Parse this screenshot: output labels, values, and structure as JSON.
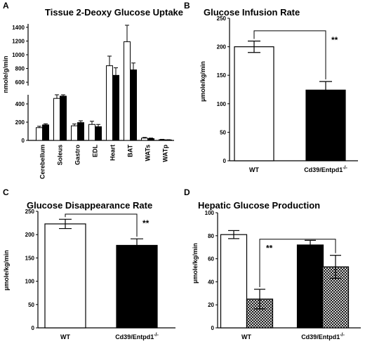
{
  "chart_data": [
    {
      "panel": "A",
      "type": "bar",
      "title": "Tissue 2-Deoxy Glucose Uptake",
      "ylabel": "nmole/g/min",
      "xlabel": "",
      "y_axis_break": true,
      "y_ticks_lower": [
        0,
        200,
        400
      ],
      "y_ticks_upper": [
        600,
        800,
        1000,
        1200,
        1400
      ],
      "ylim": [
        0,
        1400
      ],
      "categories": [
        "Cerebellum",
        "Soleus",
        "Gastro",
        "EDL",
        "Heart",
        "BAT",
        "WATs",
        "WATp"
      ],
      "series": [
        {
          "fill": "#ffffff",
          "values": [
            140,
            460,
            160,
            175,
            840,
            1190,
            25,
            8
          ],
          "errors": [
            15,
            45,
            20,
            35,
            140,
            240,
            8,
            4
          ]
        },
        {
          "fill": "#000000",
          "values": [
            170,
            485,
            195,
            150,
            700,
            780,
            20,
            5
          ],
          "errors": [
            12,
            30,
            20,
            25,
            110,
            100,
            6,
            3
          ]
        }
      ],
      "grid": false,
      "legend": "none"
    },
    {
      "panel": "B",
      "type": "bar",
      "title": "Glucose Infusion Rate",
      "ylabel": "µmole/kg/min",
      "xlabel": "",
      "ylim": [
        0,
        250
      ],
      "y_ticks": [
        0,
        50,
        100,
        150,
        200,
        250
      ],
      "categories": [
        "WT",
        "Cd39/Entpd1"
      ],
      "category_superscript": [
        "",
        "-/-"
      ],
      "values": [
        200,
        124
      ],
      "errors": [
        10,
        15
      ],
      "fills": [
        "#ffffff",
        "#000000"
      ],
      "significance": {
        "from": 0,
        "to": 1,
        "label": "**",
        "bracket_y": 228
      },
      "grid": false,
      "legend": "none"
    },
    {
      "panel": "C",
      "type": "bar",
      "title": "Glucose Disappearance Rate",
      "ylabel": "µmole/kg/min",
      "xlabel": "",
      "ylim": [
        0,
        250
      ],
      "y_ticks": [
        0,
        50,
        100,
        150,
        200,
        250
      ],
      "categories": [
        "WT",
        "Cd39/Entpd1"
      ],
      "category_superscript": [
        "",
        "-/-"
      ],
      "values": [
        223,
        177
      ],
      "errors": [
        10,
        14
      ],
      "fills": [
        "#ffffff",
        "#000000"
      ],
      "significance": {
        "from": 0,
        "to": 1,
        "label": "**",
        "bracket_y": 244
      },
      "grid": false,
      "legend": "none"
    },
    {
      "panel": "D",
      "type": "bar",
      "title": "Hepatic Glucose Production",
      "ylabel": "µmole/kg/min",
      "xlabel": "",
      "ylim": [
        0,
        100
      ],
      "y_ticks": [
        0,
        20,
        40,
        60,
        80,
        100
      ],
      "groups": [
        "WT",
        "Cd39/Entpd1"
      ],
      "group_superscript": [
        "",
        "-/-"
      ],
      "bars": [
        {
          "group": 0,
          "fill": "#ffffff",
          "value": 81,
          "error": 3.5
        },
        {
          "group": 0,
          "fill": "hatch",
          "value": 25,
          "error": 8.5
        },
        {
          "group": 1,
          "fill": "#000000",
          "value": 72,
          "error": 4
        },
        {
          "group": 1,
          "fill": "hatch",
          "value": 53,
          "error": 10
        }
      ],
      "significance": {
        "from_bar": 1,
        "to_bar": 3,
        "label": "**",
        "bracket_y": 77
      },
      "grid": false,
      "legend": "none"
    }
  ]
}
